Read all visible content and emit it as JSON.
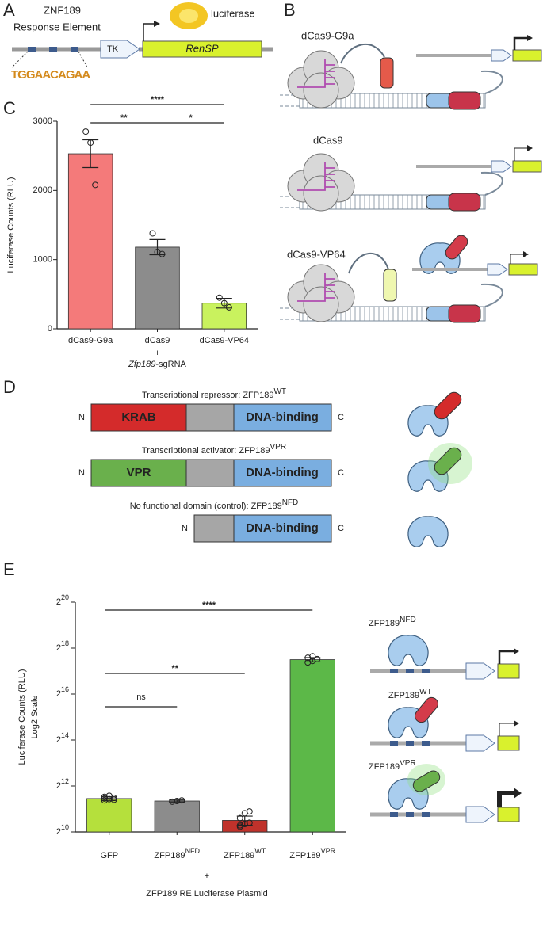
{
  "panel_letters": [
    "A",
    "B",
    "C",
    "D",
    "E"
  ],
  "panel_a": {
    "gene": "ZNF189",
    "element": "Response Element",
    "promoter": "TK",
    "reporter": "RenSP",
    "protein": "luciferase",
    "motif": "TGGAACAGAA"
  },
  "panel_b": {
    "constructs": [
      "dCas9-G9a",
      "dCas9",
      "dCas9-VP64"
    ]
  },
  "panel_d": {
    "rows": [
      {
        "title": "Transcriptional repressor: ZFP189",
        "sup": "WT",
        "domain": "KRAB",
        "color": "#d42b2b"
      },
      {
        "title": "Transcriptional activator: ZFP189",
        "sup": "VPR",
        "domain": "VPR",
        "color": "#6ab04c"
      },
      {
        "title": "No functional domain (control): ZFP189",
        "sup": "NFD"
      }
    ],
    "n_term": "N",
    "c_term": "C",
    "binding": "DNA-binding"
  },
  "panel_e_diagram": {
    "name": "ZFP189",
    "sups": [
      "NFD",
      "WT",
      "VPR"
    ]
  },
  "chart_data": [
    {
      "type": "bar",
      "categories": [
        "dCas9-G9a",
        "dCas9",
        "dCas9-VP64"
      ],
      "values": [
        2530,
        1180,
        370
      ],
      "errors": [
        200,
        110,
        70
      ],
      "points": [
        [
          2850,
          2690,
          2080
        ],
        [
          1380,
          1110,
          1080
        ],
        [
          450,
          370,
          310
        ]
      ],
      "colors": [
        "#f47a7a",
        "#8c8c8c",
        "#c9f25e"
      ],
      "ylabel": [
        "Luciferase Counts (RLU)"
      ],
      "xlabel_plus": "+",
      "xlabel": [
        "Zfp189",
        "-sgRNA"
      ],
      "ylim": [
        0,
        3000
      ],
      "yticks": [
        0,
        1000,
        2000,
        3000
      ],
      "significance": [
        {
          "from": 0,
          "to": 2,
          "label": "****"
        },
        {
          "from": 0,
          "to": 1,
          "label": "**"
        },
        {
          "from": 1,
          "to": 2,
          "label": "*"
        }
      ]
    },
    {
      "type": "bar",
      "log_base": 2,
      "categories": [
        "GFP",
        "ZFP189",
        "ZFP189",
        "ZFP189"
      ],
      "category_sups": [
        null,
        "NFD",
        "WT",
        "VPR"
      ],
      "values": [
        2800,
        2600,
        1450,
        185000
      ],
      "errors": [
        150,
        80,
        200,
        12000
      ],
      "points": [
        [
          2650,
          2750,
          2850,
          2950,
          3050,
          2700,
          2800
        ],
        [
          2550,
          2600,
          2650
        ],
        [
          1200,
          1300,
          1350,
          1550,
          1800,
          1900,
          1250
        ],
        [
          170000,
          178000,
          188000,
          196000,
          205000
        ]
      ],
      "colors": [
        "#b5e03c",
        "#8c8c8c",
        "#c0322b",
        "#5cb848"
      ],
      "ylabel": [
        "Luciferase Counts (RLU)",
        "Log2 Scale"
      ],
      "xlabel_plus": "+",
      "xlabel": [
        "ZFP189 RE Luciferase Plasmid"
      ],
      "ylim": [
        1024,
        1048576
      ],
      "yticks": [
        {
          "value": 1024,
          "label": [
            "2",
            "10"
          ]
        },
        {
          "value": 4096,
          "label": [
            "2",
            "12"
          ]
        },
        {
          "value": 16384,
          "label": [
            "2",
            "14"
          ]
        },
        {
          "value": 65536,
          "label": [
            "2",
            "16"
          ]
        },
        {
          "value": 262144,
          "label": [
            "2",
            "18"
          ]
        },
        {
          "value": 1048576,
          "label": [
            "2",
            "20"
          ]
        }
      ],
      "significance": [
        {
          "from": 0,
          "to": 3,
          "label": "****"
        },
        {
          "from": 0,
          "to": 2,
          "label": "**"
        },
        {
          "from": 0,
          "to": 1,
          "label": "ns"
        }
      ]
    }
  ]
}
